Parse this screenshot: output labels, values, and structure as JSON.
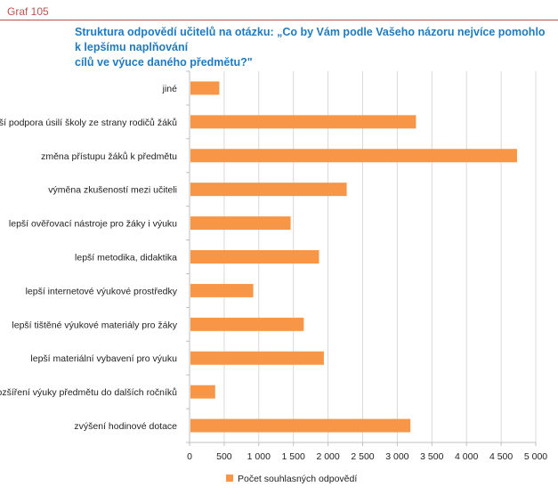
{
  "header": {
    "graf_label": "Graf 105",
    "title_line1": "Struktura odpovědí učitelů na otázku: „Co by Vám podle Vašeho názoru nejvíce pomohlo k lepšímu naplňování",
    "title_line2": "cílů ve výuce daného předmětu?\""
  },
  "chart_data": {
    "type": "bar",
    "orientation": "horizontal",
    "categories": [
      "jiné",
      "větší podpora úsilí školy ze strany rodičů žáků",
      "změna přístupu žáků k předmětu",
      "výměna zkušeností mezi učiteli",
      "lepší ověřovací nástroje pro žáky i výuku",
      "lepší metodika, didaktika",
      "lepší internetové výukové prostředky",
      "lepší tištěné výukové materiály pro žáky",
      "lepší materiální vybavení pro výuku",
      "rozšíření výuky předmětu do dalších ročníků",
      "zvýšení hodinové dotace"
    ],
    "series": [
      {
        "name": "Počet souhlasných odpovědí",
        "color": "#f79646",
        "values": [
          430,
          3270,
          4730,
          2270,
          1460,
          1870,
          920,
          1650,
          1940,
          370,
          3190
        ]
      }
    ],
    "xlim": [
      0,
      5000
    ],
    "ticks": [
      0,
      500,
      1000,
      1500,
      2000,
      2500,
      3000,
      3500,
      4000,
      4500,
      5000
    ],
    "tick_labels": [
      "0",
      "500",
      "1 000",
      "1 500",
      "2 000",
      "2 500",
      "3 000",
      "3 500",
      "4 000",
      "4 500",
      "5 000"
    ],
    "grid": true,
    "legend": "bottom-center"
  }
}
